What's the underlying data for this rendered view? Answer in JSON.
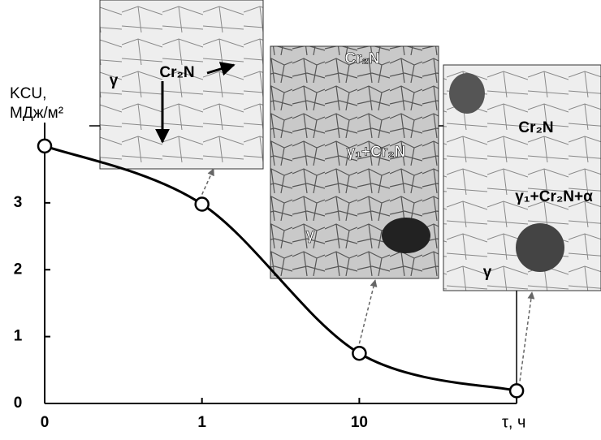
{
  "chart_data": {
    "type": "line",
    "ylabel": [
      "KCU,",
      "МДж/м²"
    ],
    "xlabel": "τ, ч",
    "categories": [
      "0",
      "1",
      "10",
      null
    ],
    "values": [
      3.85,
      2.98,
      0.75,
      0.19
    ],
    "color": "#000000",
    "ylim": [
      0,
      4.2
    ],
    "yticks": [
      0,
      1,
      2,
      3
    ],
    "insets": [
      {
        "labels": [
          "γ",
          "Cr₂N"
        ]
      },
      {
        "labels": [
          "Cr₂N",
          "γ₁+Cr₂N",
          "γ"
        ]
      },
      {
        "labels": [
          "Cr₂N",
          "γ₁+Cr₂N+α",
          "γ"
        ]
      }
    ]
  }
}
